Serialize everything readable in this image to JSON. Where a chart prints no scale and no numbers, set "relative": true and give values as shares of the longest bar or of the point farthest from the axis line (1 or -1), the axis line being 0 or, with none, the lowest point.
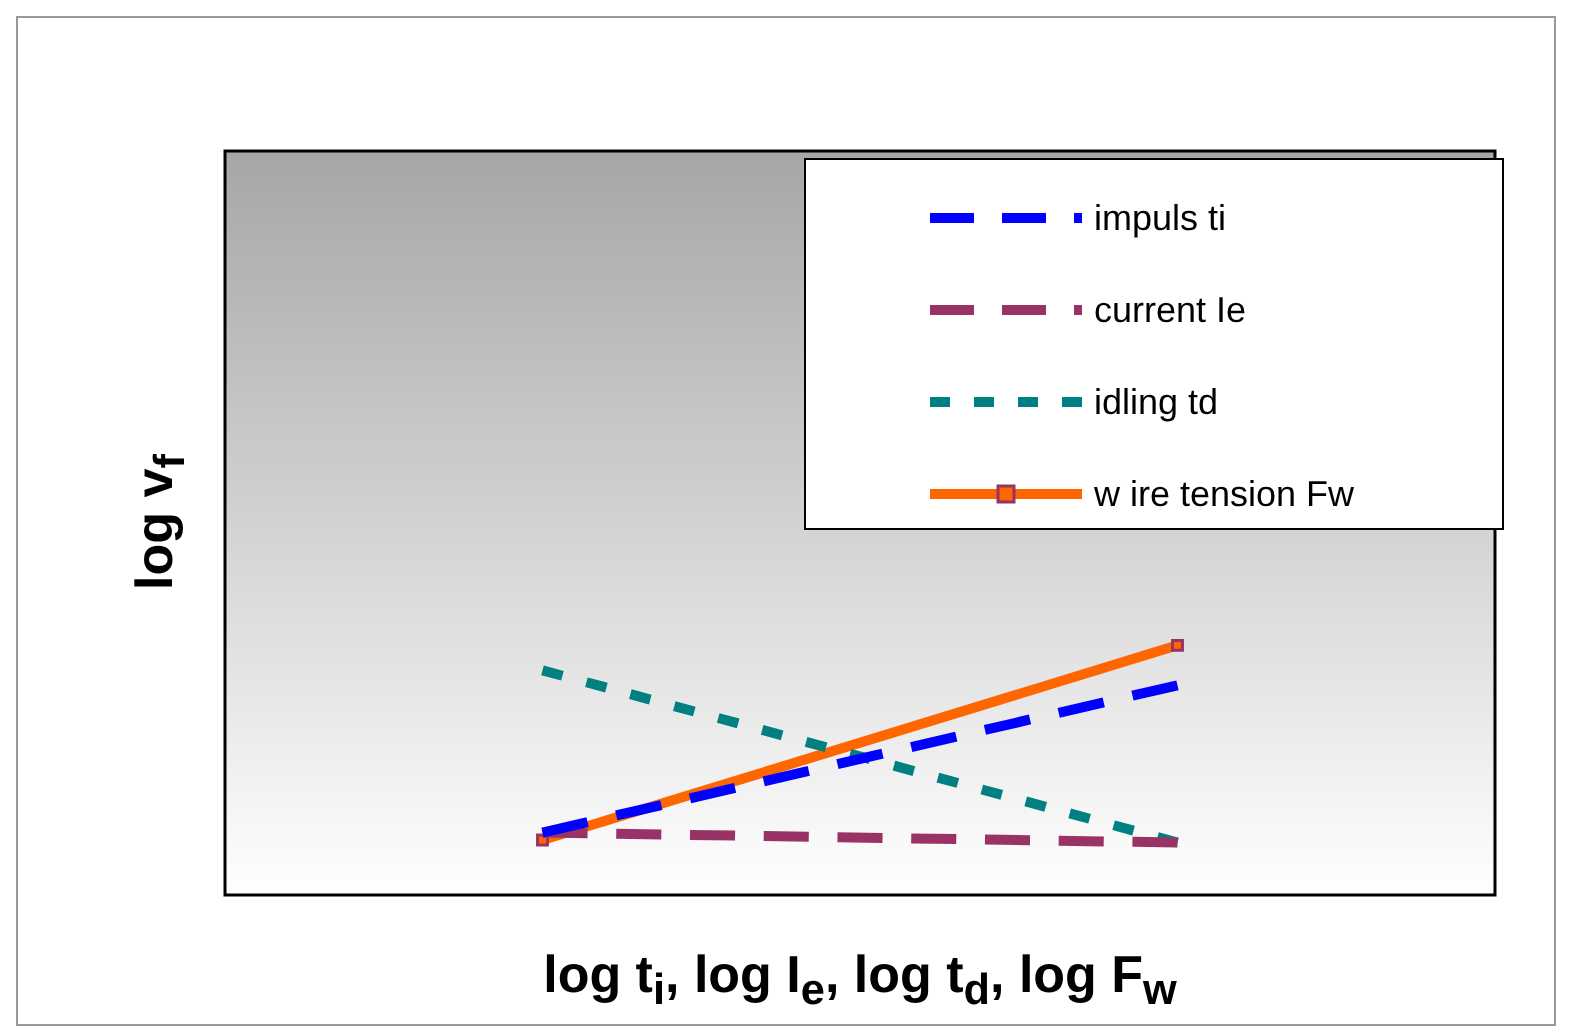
{
  "chart_data": {
    "type": "line",
    "relative": true,
    "xlabel": "log t$_{i}$, log I$_{e}$, log t$_{d}$, log F$_{w}$",
    "ylabel": "log v$_{f}$",
    "categories": [
      null,
      null
    ],
    "legend": "top right",
    "series": [
      {
        "name": "impuls ti",
        "color": "#0000ff",
        "values": [
          0.25,
          0.84
        ],
        "line_style": "dashed",
        "marker": "none"
      },
      {
        "name": "current Ie",
        "color": "#993366",
        "values": [
          0.25,
          0.21
        ],
        "line_style": "dashed",
        "marker": "none"
      },
      {
        "name": "idling td",
        "color": "#008080",
        "values": [
          0.9,
          0.21
        ],
        "line_style": "dotted",
        "marker": "none"
      },
      {
        "name": "w ire tension Fw",
        "color": "#ff6600",
        "values": [
          0.22,
          1
        ],
        "line_style": "solid",
        "marker": "square"
      }
    ]
  }
}
